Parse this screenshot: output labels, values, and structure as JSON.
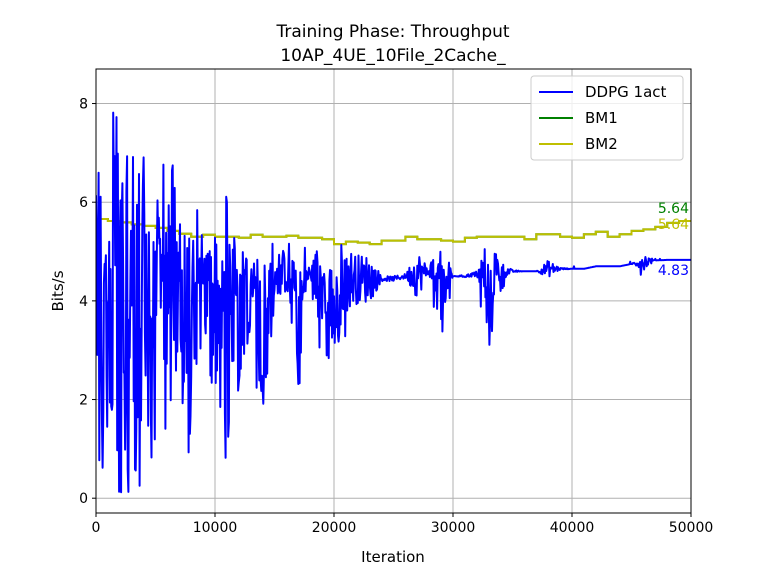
{
  "chart_data": {
    "type": "line",
    "title": "Training Phase: Throughput",
    "subtitle": "10AP_4UE_10File_2Cache_",
    "xlabel": "Iteration",
    "ylabel": "Bits/s",
    "xlim": [
      0,
      50000
    ],
    "ylim": [
      -0.3,
      8.7
    ],
    "x_ticks": [
      0,
      10000,
      20000,
      30000,
      40000,
      50000
    ],
    "x_tick_labels": [
      "0",
      "10000",
      "20000",
      "30000",
      "40000",
      "50000"
    ],
    "y_ticks": [
      0,
      2,
      4,
      6,
      8
    ],
    "y_tick_labels": [
      "0",
      "2",
      "4",
      "6",
      "8"
    ],
    "grid": true,
    "legend_position": "top-right",
    "series": [
      {
        "name": "DDPG 1act",
        "color": "#0000ff",
        "style": "noisy",
        "x": [
          0,
          1000,
          2000,
          3000,
          4000,
          5000,
          6000,
          7000,
          8000,
          9000,
          10000,
          11000,
          12000,
          13000,
          14000,
          15000,
          16000,
          17000,
          18000,
          19000,
          20000,
          21000,
          22000,
          23000,
          24000,
          25000,
          26000,
          27000,
          28000,
          29000,
          30000,
          31000,
          32000,
          33000,
          34000,
          35000,
          36000,
          37000,
          38000,
          39000,
          40000,
          41000,
          42000,
          43000,
          44000,
          45000,
          46000,
          47000,
          48000,
          49000,
          50000
        ],
        "y_high": [
          7.1,
          7.6,
          8.2,
          8.0,
          8.0,
          7.2,
          7.1,
          6.6,
          6.2,
          5.5,
          5.6,
          6.3,
          5.3,
          5.0,
          5.0,
          5.0,
          5.3,
          4.6,
          4.6,
          4.6,
          4.7,
          4.65,
          4.5,
          4.5,
          4.5,
          4.5,
          4.5,
          4.6,
          4.6,
          5.5,
          4.5,
          4.55,
          4.6,
          4.6,
          4.6,
          4.6,
          4.6,
          4.6,
          4.65,
          4.7,
          4.7,
          4.7,
          4.7,
          4.7,
          4.75,
          4.8,
          4.8,
          4.85,
          4.85,
          4.85,
          4.83
        ],
        "y_low": [
          0.1,
          0.1,
          0.1,
          0.1,
          0.1,
          0.9,
          1.0,
          2.0,
          0.6,
          2.9,
          1.5,
          0.1,
          2.3,
          3.0,
          1.3,
          4.0,
          4.4,
          1.8,
          4.5,
          2.4,
          3.0,
          3.3,
          3.5,
          3.5,
          4.4,
          4.4,
          4.4,
          3.6,
          4.5,
          2.9,
          4.5,
          4.5,
          4.5,
          2.65,
          4.2,
          4.55,
          4.6,
          4.6,
          4.3,
          4.65,
          4.7,
          4.7,
          4.7,
          4.7,
          4.75,
          4.8,
          4.45,
          4.85,
          4.85,
          4.85,
          4.83
        ],
        "y_mean": [
          4.5,
          4.5,
          4.6,
          4.5,
          4.5,
          4.6,
          4.6,
          4.6,
          4.5,
          4.6,
          4.55,
          4.5,
          4.5,
          4.6,
          4.55,
          4.55,
          4.6,
          4.5,
          4.55,
          4.45,
          4.45,
          4.45,
          4.45,
          4.45,
          4.45,
          4.45,
          4.5,
          4.55,
          4.6,
          4.55,
          4.5,
          4.5,
          4.55,
          4.55,
          4.6,
          4.6,
          4.6,
          4.6,
          4.65,
          4.65,
          4.65,
          4.65,
          4.7,
          4.7,
          4.7,
          4.75,
          4.8,
          4.82,
          4.83,
          4.83,
          4.83
        ],
        "end_value_label": "4.83"
      },
      {
        "name": "BM1",
        "color": "#008000",
        "style": "step",
        "x": [
          0,
          1000,
          2000,
          3000,
          4000,
          5000,
          6000,
          7000,
          8000,
          9000,
          10000,
          12000,
          13000,
          14000,
          16000,
          17000,
          19000,
          20000,
          21000,
          22000,
          23000,
          24000,
          26000,
          27000,
          28000,
          29000,
          30000,
          31000,
          32000,
          34000,
          36000,
          37000,
          39000,
          40000,
          41000,
          42000,
          43000,
          44000,
          45000,
          46000,
          47000,
          48000,
          49000,
          50000
        ],
        "y": [
          5.66,
          5.62,
          5.59,
          5.55,
          5.52,
          5.48,
          5.42,
          5.36,
          5.3,
          5.34,
          5.3,
          5.28,
          5.34,
          5.3,
          5.32,
          5.28,
          5.25,
          5.15,
          5.2,
          5.18,
          5.15,
          5.22,
          5.3,
          5.25,
          5.25,
          5.22,
          5.2,
          5.28,
          5.3,
          5.3,
          5.25,
          5.35,
          5.3,
          5.28,
          5.35,
          5.4,
          5.3,
          5.35,
          5.42,
          5.45,
          5.5,
          5.58,
          5.62,
          5.64
        ],
        "end_value_label": "5.64"
      },
      {
        "name": "BM2",
        "color": "#bfbf00",
        "style": "step",
        "x": [
          0,
          1000,
          2000,
          3000,
          4000,
          5000,
          6000,
          7000,
          8000,
          9000,
          10000,
          12000,
          13000,
          14000,
          16000,
          17000,
          19000,
          20000,
          21000,
          22000,
          23000,
          24000,
          26000,
          27000,
          28000,
          29000,
          30000,
          31000,
          32000,
          34000,
          36000,
          37000,
          39000,
          40000,
          41000,
          42000,
          43000,
          44000,
          45000,
          46000,
          47000,
          48000,
          49000,
          50000
        ],
        "y": [
          5.66,
          5.62,
          5.59,
          5.55,
          5.52,
          5.48,
          5.42,
          5.36,
          5.3,
          5.34,
          5.3,
          5.28,
          5.34,
          5.3,
          5.32,
          5.28,
          5.25,
          5.15,
          5.2,
          5.18,
          5.15,
          5.22,
          5.3,
          5.25,
          5.25,
          5.22,
          5.2,
          5.28,
          5.3,
          5.3,
          5.25,
          5.35,
          5.3,
          5.28,
          5.35,
          5.4,
          5.3,
          5.35,
          5.42,
          5.45,
          5.5,
          5.58,
          5.62,
          5.64
        ],
        "end_value_label": "5.64"
      }
    ]
  }
}
